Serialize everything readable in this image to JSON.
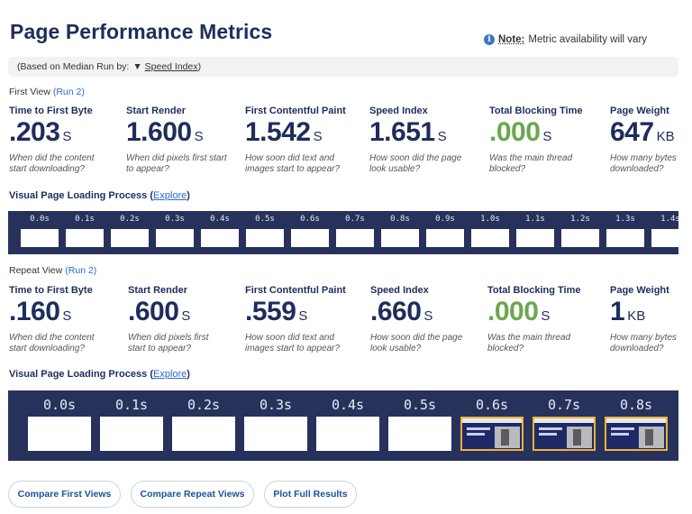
{
  "page": {
    "title": "Page Performance Metrics",
    "note_label": "Note:",
    "note_text": "Metric availability will vary",
    "info_icon": "i",
    "median_text": "(Based on Median Run by:",
    "median_selected": "Speed Index",
    "median_close": ")"
  },
  "first_view": {
    "label": "First View",
    "run_link": "(Run 2)",
    "metrics": [
      {
        "label": "Time to First Byte",
        "value": ".203",
        "unit": "S",
        "desc1": "When did the content",
        "desc2": "start downloading?"
      },
      {
        "label": "Start Render",
        "value": "1.600",
        "unit": "S",
        "desc1": "When did pixels first start",
        "desc2": "to appear?"
      },
      {
        "label": "First Contentful Paint",
        "value": "1.542",
        "unit": "S",
        "desc1": "How soon did text and",
        "desc2": "images start to appear?"
      },
      {
        "label": "Speed Index",
        "value": "1.651",
        "unit": "S",
        "desc1": "How soon did the page",
        "desc2": "look usable?"
      },
      {
        "label": "Total Blocking Time",
        "value": ".000",
        "unit": "S",
        "desc1": "Was the main thread",
        "desc2": "blocked?"
      },
      {
        "label": "Page Weight",
        "value": "647",
        "unit": "KB",
        "desc1": "How many bytes",
        "desc2": "downloaded?"
      }
    ],
    "visual_label": "Visual Page Loading Process",
    "explore_open": "(",
    "explore_link": "Explore",
    "explore_close": ")",
    "frames": [
      "0.0s",
      "0.1s",
      "0.2s",
      "0.3s",
      "0.4s",
      "0.5s",
      "0.6s",
      "0.7s",
      "0.8s",
      "0.9s",
      "1.0s",
      "1.1s",
      "1.2s",
      "1.3s",
      "1.4s"
    ]
  },
  "repeat_view": {
    "label": "Repeat View",
    "run_link": "(Run 2)",
    "metrics": [
      {
        "label": "Time to First Byte",
        "value": ".160",
        "unit": "S",
        "desc1": "When did the content",
        "desc2": "start downloading?"
      },
      {
        "label": "Start Render",
        "value": ".600",
        "unit": "S",
        "desc1": "When did pixels first",
        "desc2": "start to appear?"
      },
      {
        "label": "First Contentful Paint",
        "value": ".559",
        "unit": "S",
        "desc1": "How soon did text and",
        "desc2": "images start to appear?"
      },
      {
        "label": "Speed Index",
        "value": ".660",
        "unit": "S",
        "desc1": "How soon did the page",
        "desc2": "look usable?"
      },
      {
        "label": "Total Blocking Time",
        "value": ".000",
        "unit": "S",
        "desc1": "Was the main thread",
        "desc2": "blocked?"
      },
      {
        "label": "Page Weight",
        "value": "1",
        "unit": "KB",
        "desc1": "How many bytes",
        "desc2": "downloaded?"
      }
    ],
    "visual_label": "Visual Page Loading Process",
    "explore_open": "(",
    "explore_link": "Explore",
    "explore_close": ")",
    "frames": [
      "0.0s",
      "0.1s",
      "0.2s",
      "0.3s",
      "0.4s",
      "0.5s",
      "0.6s",
      "0.7s",
      "0.8s"
    ]
  },
  "buttons": {
    "compare_first": "Compare First Views",
    "compare_repeat": "Compare Repeat Views",
    "plot_full": "Plot Full Results"
  },
  "colors": {
    "accent_green": "#6aa84f",
    "navy": "#1e2d5c",
    "strip_bg": "#27325c",
    "highlight_border": "#f2b233",
    "link": "#2a6ad0"
  }
}
